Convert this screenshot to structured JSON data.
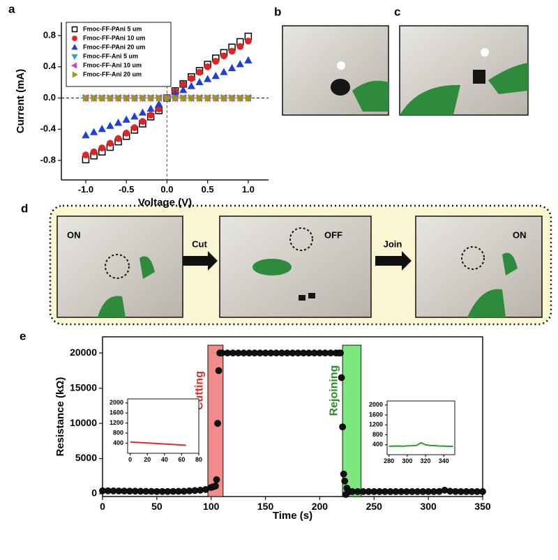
{
  "figure": {
    "panel_labels": [
      "a",
      "b",
      "c",
      "d",
      "e"
    ],
    "d_photo_labels": [
      "ON",
      "OFF",
      "ON"
    ],
    "d_arrow_labels": [
      "Cut",
      "Join"
    ]
  },
  "chart_data": [
    {
      "type": "scatter",
      "xlabel": "Voltage (V)",
      "ylabel": "Current (mA)",
      "x": [
        -1.0,
        -0.9,
        -0.8,
        -0.7,
        -0.6,
        -0.5,
        -0.4,
        -0.3,
        -0.2,
        -0.1,
        0.0,
        0.1,
        0.2,
        0.3,
        0.4,
        0.5,
        0.6,
        0.7,
        0.8,
        0.9,
        1.0
      ],
      "series": [
        {
          "name": "Fmoc-FF-PAni 5 um",
          "color": "#111111",
          "marker": "square",
          "values": [
            -0.79,
            -0.74,
            -0.69,
            -0.63,
            -0.56,
            -0.49,
            -0.41,
            -0.33,
            -0.24,
            -0.16,
            0,
            0.09,
            0.18,
            0.27,
            0.35,
            0.43,
            0.51,
            0.58,
            0.65,
            0.72,
            0.79
          ]
        },
        {
          "name": "Fmoc-FF-PAni 10 um",
          "color": "#e02424",
          "marker": "circle",
          "values": [
            -0.73,
            -0.69,
            -0.64,
            -0.58,
            -0.52,
            -0.45,
            -0.38,
            -0.3,
            -0.22,
            -0.14,
            0,
            0.08,
            0.17,
            0.25,
            0.33,
            0.4,
            0.47,
            0.54,
            0.6,
            0.66,
            0.73
          ]
        },
        {
          "name": "Fmoc-FF-PAni 20 um",
          "color": "#1f3fd6",
          "marker": "triangle-up",
          "values": [
            -0.48,
            -0.44,
            -0.4,
            -0.36,
            -0.32,
            -0.28,
            -0.24,
            -0.19,
            -0.14,
            -0.08,
            0,
            0.05,
            0.1,
            0.15,
            0.2,
            0.24,
            0.28,
            0.33,
            0.38,
            0.43,
            0.48
          ]
        },
        {
          "name": "Fmoc-FF-Ani 5 um",
          "color": "#2aa9a9",
          "marker": "triangle-down",
          "values": [
            0,
            0,
            0,
            0,
            0,
            0,
            0,
            0,
            0,
            0,
            0,
            0,
            0,
            0,
            0,
            0,
            0,
            0,
            0,
            0,
            0
          ]
        },
        {
          "name": "Fmoc-FF-Ani 10 um",
          "color": "#d040d0",
          "marker": "triangle-left",
          "values": [
            0,
            0,
            0,
            0,
            0,
            0,
            0,
            0,
            0,
            0,
            0,
            0,
            0,
            0,
            0,
            0,
            0,
            0,
            0,
            0,
            0
          ]
        },
        {
          "name": "Fmoc-FF-Ani 20 um",
          "color": "#9a9a10",
          "marker": "triangle-right",
          "values": [
            0,
            0,
            0,
            0,
            0,
            0,
            0,
            0,
            0,
            0,
            0,
            0,
            0,
            0,
            0,
            0,
            0,
            0,
            0,
            0,
            0
          ]
        }
      ],
      "xlim": [
        -1.3,
        1.25
      ],
      "xticks": [
        {
          "value": -1.0,
          "label": "-1.0"
        },
        -0.5,
        {
          "value": 0,
          "label": "0.0"
        },
        0.5,
        {
          "value": 1.0,
          "label": "1.0"
        }
      ],
      "ylim": [
        -1.05,
        0.97
      ],
      "yticks": [
        -0.8,
        -0.4,
        {
          "value": 0,
          "label": "0.0"
        },
        0.4,
        0.8
      ],
      "reference_lines": true,
      "legend": "top-left"
    },
    {
      "type": "scatter",
      "xlabel": "Time (s)",
      "ylabel": "Resistance (kΩ)",
      "x": [
        0,
        5,
        10,
        15,
        20,
        25,
        30,
        35,
        40,
        45,
        50,
        55,
        60,
        65,
        70,
        75,
        80,
        85,
        90,
        95,
        100,
        102,
        104,
        105,
        106,
        107,
        108,
        110,
        115,
        120,
        125,
        130,
        135,
        140,
        145,
        150,
        155,
        160,
        165,
        170,
        175,
        180,
        185,
        190,
        195,
        200,
        205,
        210,
        215,
        218,
        219,
        220,
        221,
        222,
        223,
        224,
        225,
        227,
        230,
        235,
        240,
        245,
        250,
        255,
        260,
        265,
        270,
        275,
        280,
        285,
        290,
        295,
        300,
        305,
        310,
        315,
        320,
        325,
        330,
        335,
        340,
        345,
        350
      ],
      "series": [
        {
          "color": "#111111",
          "marker": "circle",
          "values": [
            420,
            410,
            400,
            390,
            380,
            370,
            360,
            350,
            340,
            330,
            320,
            320,
            320,
            330,
            340,
            350,
            400,
            450,
            500,
            600,
            900,
            1000,
            1100,
            2000,
            10000,
            17500,
            20000,
            20000,
            20000,
            20000,
            20000,
            20000,
            20000,
            20000,
            20000,
            20000,
            20000,
            20000,
            20000,
            20000,
            20000,
            20000,
            20000,
            20000,
            20000,
            20000,
            20000,
            20000,
            20000,
            20000,
            20000,
            16500,
            9500,
            2800,
            1800,
            -100,
            800,
            300,
            300,
            300,
            300,
            300,
            300,
            300,
            300,
            300,
            300,
            300,
            300,
            300,
            300,
            300,
            300,
            300,
            320,
            500,
            350,
            320,
            300,
            300,
            300,
            300,
            300
          ]
        }
      ],
      "xlim": [
        0,
        350
      ],
      "xticks": [
        0,
        50,
        100,
        150,
        200,
        250,
        300,
        350
      ],
      "ylim": [
        -400,
        22300
      ],
      "yticks": [
        0,
        5000,
        10000,
        15000,
        20000
      ],
      "annotations": [
        {
          "text": "Cutting",
          "color": "#d8302a",
          "fill": "#f28b8b"
        },
        {
          "text": "Rejoining",
          "color": "#2a8a2a",
          "fill": "#7de87d"
        }
      ]
    },
    {
      "type": "line",
      "x": [
        0,
        5,
        10,
        15,
        20,
        25,
        30,
        35,
        40,
        45,
        50,
        55,
        60,
        65
      ],
      "values": [
        450,
        440,
        430,
        420,
        410,
        400,
        390,
        380,
        370,
        360,
        350,
        340,
        330,
        320
      ],
      "color": "#d8302a",
      "xlim": [
        -3,
        80
      ],
      "xticks": [
        0,
        20,
        40,
        60,
        80
      ],
      "ylim": [
        0,
        2160
      ],
      "yticks": [
        400,
        800,
        1200,
        1600,
        2000
      ]
    },
    {
      "type": "line",
      "x": [
        280,
        285,
        290,
        295,
        300,
        305,
        310,
        315,
        320,
        325,
        330,
        335,
        340,
        345,
        350
      ],
      "values": [
        340,
        345,
        350,
        340,
        355,
        360,
        370,
        480,
        400,
        370,
        360,
        350,
        345,
        340,
        335
      ],
      "color": "#2a9a2a",
      "xlim": [
        278,
        352
      ],
      "xticks": [
        280,
        300,
        320,
        340
      ],
      "ylim": [
        0,
        2160
      ],
      "yticks": [
        400,
        800,
        1200,
        1600,
        2000
      ]
    }
  ]
}
